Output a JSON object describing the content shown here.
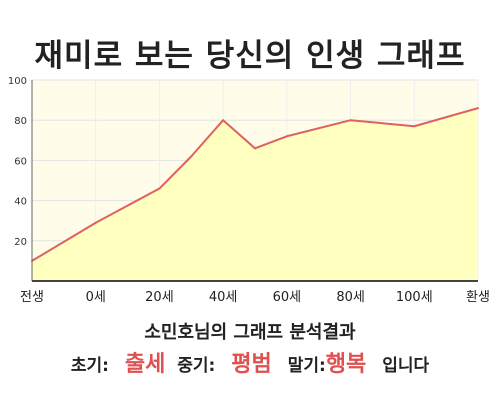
{
  "chart_data": {
    "type": "area",
    "title": "재미로 보는 당신의 인생 그래프",
    "x_labels": [
      "전생",
      "0세",
      "20세",
      "40세",
      "60세",
      "80세",
      "100세",
      "환생"
    ],
    "y_ticks": [
      20,
      40,
      60,
      80,
      100
    ],
    "ylim": [
      0,
      100
    ],
    "series": [
      {
        "values": [
          {
            "x": "전생",
            "y": 10
          },
          {
            "x": "0세",
            "y": 29
          },
          {
            "x": "20세",
            "y": 46
          },
          {
            "x": "30세",
            "y": 62
          },
          {
            "x": "40세",
            "y": 80
          },
          {
            "x": "50세",
            "y": 66
          },
          {
            "x": "60세",
            "y": 72
          },
          {
            "x": "80세",
            "y": 80
          },
          {
            "x": "100세",
            "y": 77
          },
          {
            "x": "환생",
            "y": 86
          }
        ]
      }
    ],
    "line_color": "#e06060",
    "fill_color": "#ffffc0",
    "grid": true
  },
  "subtitle": "소민호님의 그래프 분석결과",
  "summary": {
    "early_label": "초기:",
    "early_value": "출세",
    "middle_label": "중기:",
    "middle_value": "평범",
    "late_label": "말기:",
    "late_value": "행복",
    "ending": "입니다"
  },
  "colors": {
    "highlight": "#e05050",
    "plot_background": "#fffde9"
  }
}
